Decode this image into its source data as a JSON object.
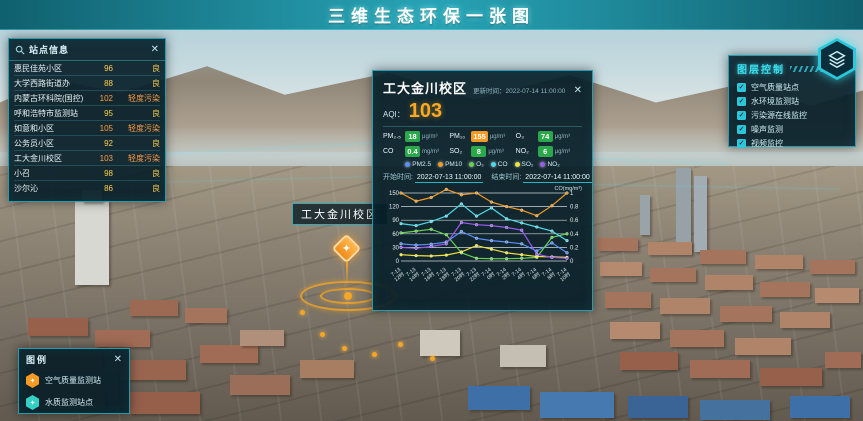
{
  "header": {
    "title": "三维生态环保一张图"
  },
  "query_panel": {
    "title": "站点信息",
    "close": "✕",
    "rows": [
      {
        "name": "惠民佳苑小区",
        "value": "96",
        "status": "良",
        "status_color": "#ffd04d"
      },
      {
        "name": "大学西路街道办",
        "value": "88",
        "status": "良",
        "status_color": "#ffd04d"
      },
      {
        "name": "内蒙古环科院(国控)",
        "value": "102",
        "status": "轻度污染",
        "status_color": "#ff9d45"
      },
      {
        "name": "呼和浩特市监测站",
        "value": "95",
        "status": "良",
        "status_color": "#ffd04d"
      },
      {
        "name": "如意和小区",
        "value": "105",
        "status": "轻度污染",
        "status_color": "#ff9d45"
      },
      {
        "name": "公务员小区",
        "value": "92",
        "status": "良",
        "status_color": "#ffd04d"
      },
      {
        "name": "工大金川校区",
        "value": "103",
        "status": "轻度污染",
        "status_color": "#ff9d45"
      },
      {
        "name": "小召",
        "value": "98",
        "status": "良",
        "status_color": "#ffd04d"
      },
      {
        "name": "沙尔沁",
        "value": "86",
        "status": "良",
        "status_color": "#ffd04d"
      }
    ]
  },
  "station_panel": {
    "title": "工大金川校区",
    "update_label": "更新时间：",
    "update_time": "2022-07-14 11:00:00",
    "close": "✕",
    "aqi_label": "AQI：",
    "aqi_value": "103",
    "pollutants": [
      {
        "label": "PM₂.₅",
        "value": "18",
        "unit": "μg/m³",
        "box_color": "#2ba84a"
      },
      {
        "label": "PM₁₀",
        "value": "155",
        "unit": "μg/m³",
        "box_color": "#f59a23"
      },
      {
        "label": "O₃",
        "value": "74",
        "unit": "μg/m³",
        "box_color": "#2ba84a"
      },
      {
        "label": "CO",
        "value": "0.4",
        "unit": "mg/m³",
        "box_color": "#2ba84a"
      },
      {
        "label": "SO₂",
        "value": "8",
        "unit": "μg/m³",
        "box_color": "#2ba84a"
      },
      {
        "label": "NO₂",
        "value": "6",
        "unit": "μg/m³",
        "box_color": "#2ba84a"
      }
    ],
    "legend": [
      {
        "name": "PM2.5",
        "color": "#5b8ff9"
      },
      {
        "name": "PM10",
        "color": "#f59a23"
      },
      {
        "name": "O₃",
        "color": "#67d14e"
      },
      {
        "name": "CO",
        "color": "#4fd8e8"
      },
      {
        "name": "SO₂",
        "color": "#f2e33c"
      },
      {
        "name": "NO₂",
        "color": "#9b59f0"
      }
    ],
    "start_label": "开始时间:",
    "start_time": "2022-07-13 11:00:00",
    "end_label": "结束时间:",
    "end_time": "2022-07-14 11:00:00"
  },
  "chart_data": {
    "type": "line",
    "title": "",
    "xlabel": "",
    "ylabel": "",
    "right_axis_title": "CO(mg/m³)",
    "categories": [
      "7-13 12时",
      "7-13 14时",
      "7-13 16时",
      "7-13 18时",
      "7-13 20时",
      "7-13 22时",
      "7-14 0时",
      "7-14 2时",
      "7-14 4时",
      "7-14 6时",
      "7-14 8时",
      "7-14 10时"
    ],
    "ylim": [
      0,
      150
    ],
    "yticks": [
      0,
      30,
      60,
      90,
      120,
      150
    ],
    "ylim_right": [
      0,
      1
    ],
    "yticks_right": [
      0,
      0.2,
      0.4,
      0.6,
      0.8,
      1
    ],
    "grid": true,
    "legend_position": "top",
    "series": [
      {
        "name": "PM2.5",
        "color": "#5b8ff9",
        "axis": "left",
        "values": [
          38,
          35,
          37,
          42,
          65,
          50,
          45,
          42,
          38,
          22,
          40,
          18
        ]
      },
      {
        "name": "PM10",
        "color": "#f59a23",
        "axis": "left",
        "values": [
          150,
          132,
          140,
          158,
          146,
          150,
          130,
          120,
          112,
          100,
          122,
          150
        ]
      },
      {
        "name": "O3",
        "color": "#67d14e",
        "axis": "left",
        "values": [
          62,
          66,
          70,
          58,
          18,
          6,
          5,
          5,
          6,
          8,
          52,
          60
        ]
      },
      {
        "name": "CO",
        "color": "#4fd8e8",
        "axis": "right",
        "values": [
          0.55,
          0.52,
          0.58,
          0.66,
          0.84,
          0.66,
          0.78,
          0.62,
          0.56,
          0.5,
          0.44,
          0.3
        ]
      },
      {
        "name": "SO2",
        "color": "#f2e33c",
        "axis": "left",
        "values": [
          14,
          12,
          11,
          13,
          20,
          34,
          26,
          18,
          14,
          10,
          9,
          8
        ]
      },
      {
        "name": "NO2",
        "color": "#9b59f0",
        "axis": "left",
        "values": [
          30,
          28,
          32,
          38,
          85,
          80,
          78,
          74,
          68,
          15,
          8,
          6
        ]
      }
    ]
  },
  "layer_panel": {
    "title": "图层控制",
    "check_glyph": "✓",
    "items": [
      {
        "label": "空气质量站点"
      },
      {
        "label": "水环境监测站"
      },
      {
        "label": "污染源在线监控"
      },
      {
        "label": "噪声监测"
      },
      {
        "label": "视频监控"
      }
    ]
  },
  "legend_panel": {
    "title": "图例",
    "close": "✕",
    "items": [
      {
        "label": "空气质量监测站",
        "color": "#f59a23"
      },
      {
        "label": "水质监测站点",
        "color": "#35d0c5"
      }
    ]
  },
  "map_label": {
    "text": "工大金川校区"
  },
  "colors": {
    "accent_cyan": "#2bc8dc",
    "aqi_orange": "#f7a825",
    "good_green": "#2ba84a",
    "warn_orange": "#f59a23"
  }
}
